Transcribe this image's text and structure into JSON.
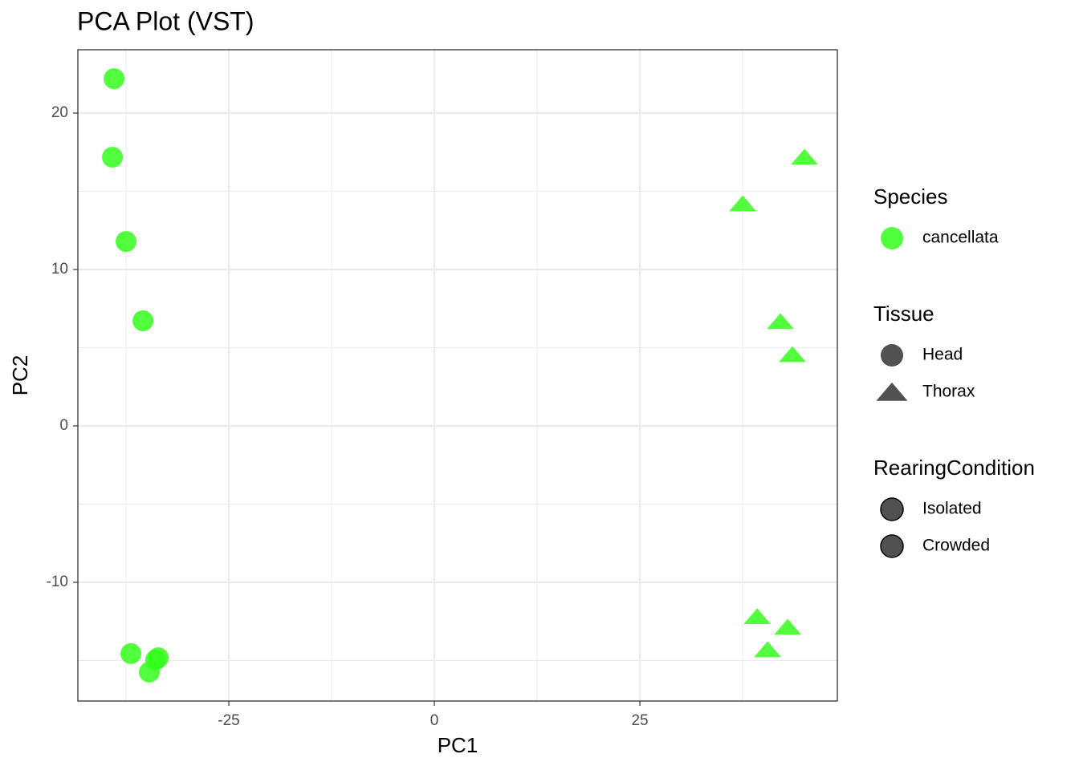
{
  "chart_data": {
    "type": "scatter",
    "title": "PCA Plot (VST)",
    "x_label": "PC1",
    "y_label": "PC2",
    "xlim": [
      -43.36,
      49.02
    ],
    "ylim": [
      -17.59,
      24.05
    ],
    "xticks": [
      -25,
      0,
      25
    ],
    "yticks": [
      -10,
      0,
      10,
      20
    ],
    "minor_xticks": [
      -37.5,
      -12.5,
      12.5,
      37.5
    ],
    "minor_yticks": [
      -15,
      -5,
      5,
      15
    ],
    "grid": true,
    "series": [
      {
        "name": "Head",
        "shape": "circle",
        "color": "#33ff1a",
        "x": [
          -38.96,
          -39.16,
          -37.5,
          -35.45,
          -36.91,
          -33.59,
          -33.9,
          -34.67
        ],
        "y": [
          22.2,
          17.18,
          11.79,
          6.72,
          -14.56,
          -14.82,
          -14.97,
          -15.74
        ]
      },
      {
        "name": "Thorax",
        "shape": "triangle",
        "color": "#33ff1a",
        "x": [
          45.02,
          37.5,
          42.09,
          43.55,
          39.26,
          42.97,
          40.53
        ],
        "y": [
          17.18,
          14.2,
          6.67,
          4.56,
          -12.2,
          -12.87,
          -14.31
        ]
      }
    ],
    "legends": [
      {
        "title": "Species",
        "items": [
          {
            "label": "cancellata",
            "shape": "circle",
            "color": "#33ff1a"
          }
        ]
      },
      {
        "title": "Tissue",
        "items": [
          {
            "label": "Head",
            "shape": "circle",
            "color": "#333333"
          },
          {
            "label": "Thorax",
            "shape": "triangle",
            "color": "#333333"
          }
        ]
      },
      {
        "title": "RearingCondition",
        "items": [
          {
            "label": "Isolated",
            "shape": "circle",
            "color": "#333333",
            "stroke": "#000000"
          },
          {
            "label": "Crowded",
            "shape": "circle",
            "color": "#333333",
            "stroke": "#000000"
          }
        ]
      }
    ]
  }
}
